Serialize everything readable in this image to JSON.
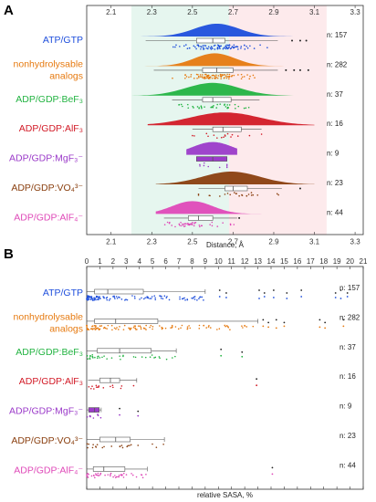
{
  "colors": {
    "background": "#ffffff",
    "band_green": "#e6f6ef",
    "band_pink": "#fdeaec",
    "box_stroke": "#555555",
    "panel_frame": "#333333"
  },
  "chart_data": [
    {
      "panel": "A",
      "type": "raincloud",
      "xlabel": "Distance, Å",
      "xlim": [
        1.98,
        3.34
      ],
      "ticks": [
        "2.1",
        "2.3",
        "2.5",
        "2.7",
        "2.9",
        "3.1",
        "3.3"
      ],
      "tick_values": [
        2.1,
        2.3,
        2.5,
        2.7,
        2.9,
        3.1,
        3.3
      ],
      "bands": [
        {
          "range": [
            2.2,
            2.68
          ],
          "color": "#e6f6ef"
        },
        {
          "range": [
            2.68,
            3.16
          ],
          "color": "#fdeaec"
        }
      ],
      "series": [
        {
          "name": "ATP/GTP",
          "label_lines": [
            "ATP/GTP"
          ],
          "count_label": "n: 157",
          "color": "#1f4fdc",
          "box": {
            "q1": 2.52,
            "median": 2.6,
            "q3": 2.66,
            "whisker_low": 2.27,
            "whisker_high": 2.92
          },
          "density_peak": 2.62,
          "density_range": [
            2.18,
            3.14
          ],
          "width": 0.11,
          "outliers": [
            2.99,
            3.03,
            3.06
          ]
        },
        {
          "name": "nonhydrolysable analogs",
          "label_lines": [
            "nonhydrolysable",
            "analogs"
          ],
          "count_label": "n: 282",
          "color": "#e67a10",
          "box": {
            "q1": 2.55,
            "median": 2.62,
            "q3": 2.7,
            "whisker_low": 2.31,
            "whisker_high": 2.92
          },
          "density_peak": 2.61,
          "density_range": [
            2.2,
            3.14
          ],
          "width": 0.1,
          "outliers": [
            2.96,
            3.0,
            3.03,
            3.07
          ]
        },
        {
          "name": "ADP/GDP:BeF3",
          "label_lines": [
            "ADP/GDP:BeF₃"
          ],
          "count_label": "n: 37",
          "color": "#22b341",
          "box": {
            "q1": 2.55,
            "median": 2.6,
            "q3": 2.69,
            "whisker_low": 2.4,
            "whisker_high": 2.83
          },
          "density_peak": 2.6,
          "density_range": [
            2.2,
            3.12
          ],
          "width": 0.13,
          "outliers": []
        },
        {
          "name": "ADP/GDP:AlF3",
          "label_lines": [
            "ADP/GDP:AlF₃"
          ],
          "count_label": "n: 16",
          "color": "#d21a26",
          "box": {
            "q1": 2.6,
            "median": 2.65,
            "q3": 2.74,
            "whisker_low": 2.5,
            "whisker_high": 2.84
          },
          "density_peak": 2.66,
          "density_range": [
            2.28,
            3.1
          ],
          "width": 0.17,
          "outliers": []
        },
        {
          "name": "ADP/GDP:MgF3-",
          "label_lines": [
            "ADP/GDP:MgF₃⁻"
          ],
          "count_label": "n: 9",
          "color": "#9b3bc9",
          "box": {
            "q1": 2.52,
            "median": 2.6,
            "q3": 2.67,
            "whisker_low": 2.52,
            "whisker_high": 2.67
          },
          "density_peak": 2.6,
          "density_range": [
            2.47,
            2.72
          ],
          "width": 0.1,
          "outliers": [],
          "box_filled": true
        },
        {
          "name": "ADP/GDP:VO4 3-",
          "label_lines": [
            "ADP/GDP:VO₄³⁻"
          ],
          "count_label": "n: 23",
          "color": "#8a3f0f",
          "box": {
            "q1": 2.66,
            "median": 2.7,
            "q3": 2.77,
            "whisker_low": 2.53,
            "whisker_high": 2.94
          },
          "density_peak": 2.69,
          "density_range": [
            2.32,
            3.1
          ],
          "width": 0.14,
          "outliers": [
            3.03
          ]
        },
        {
          "name": "ADP/GDP:AlF4-",
          "label_lines": [
            "ADP/GDP:AlF₄⁻"
          ],
          "count_label": "n: 44",
          "color": "#df49b8",
          "box": {
            "q1": 2.48,
            "median": 2.53,
            "q3": 2.6,
            "whisker_low": 2.36,
            "whisker_high": 2.72
          },
          "density_peak": 2.5,
          "density_range": [
            2.32,
            2.86
          ],
          "width": 0.1,
          "outliers": [
            2.73
          ]
        }
      ]
    },
    {
      "panel": "B",
      "type": "box-strip",
      "xlabel": "relative SASA, %",
      "xlim": [
        0,
        21
      ],
      "ticks": [
        "0",
        "1",
        "2",
        "3",
        "4",
        "5",
        "6",
        "7",
        "8",
        "9",
        "10",
        "11",
        "12",
        "13",
        "14",
        "15",
        "16",
        "17",
        "18",
        "19",
        "20",
        "21"
      ],
      "tick_values": [
        0,
        1,
        2,
        3,
        4,
        5,
        6,
        7,
        8,
        9,
        10,
        11,
        12,
        13,
        14,
        15,
        16,
        17,
        18,
        19,
        20,
        21
      ],
      "series": [
        {
          "name": "ATP/GTP",
          "label_lines": [
            "ATP/GTP"
          ],
          "count_label": "n: 157",
          "color": "#1f4fdc",
          "box": {
            "q1": 0.6,
            "median": 1.6,
            "q3": 4.3,
            "whisker_low": 0,
            "whisker_high": 9.0
          },
          "outliers": [
            10.1,
            10.6,
            13.1,
            13.5,
            14.2,
            15.2,
            16.3,
            18.9,
            19.3,
            19.8
          ]
        },
        {
          "name": "nonhydrolysable analogs",
          "label_lines": [
            "nonhydrolysable",
            "analogs"
          ],
          "count_label": "n: 282",
          "color": "#e67a10",
          "box": {
            "q1": 0.6,
            "median": 2.2,
            "q3": 5.4,
            "whisker_low": 0,
            "whisker_high": 13.0
          },
          "outliers": [
            13.4,
            13.8,
            14.4,
            15.0,
            17.7,
            18.1,
            19.5
          ]
        },
        {
          "name": "ADP/GDP:BeF3",
          "label_lines": [
            "ADP/GDP:BeF₃"
          ],
          "count_label": "n: 37",
          "color": "#22b341",
          "box": {
            "q1": 0.8,
            "median": 2.5,
            "q3": 4.9,
            "whisker_low": 0,
            "whisker_high": 6.8
          },
          "outliers": [
            10.2,
            11.8
          ]
        },
        {
          "name": "ADP/GDP:AlF3",
          "label_lines": [
            "ADP/GDP:AlF₃"
          ],
          "count_label": "n: 16",
          "color": "#d21a26",
          "box": {
            "q1": 1.0,
            "median": 1.8,
            "q3": 2.5,
            "whisker_low": 0.1,
            "whisker_high": 3.8
          },
          "outliers": [
            12.9
          ]
        },
        {
          "name": "ADP/GDP:MgF3-",
          "label_lines": [
            "ADP/GDP:MgF₃⁻"
          ],
          "count_label": "n: 9",
          "color": "#9b3bc9",
          "box": {
            "q1": 0.15,
            "median": 0.6,
            "q3": 0.95,
            "whisker_low": 0.0,
            "whisker_high": 1.1
          },
          "outliers": [
            2.5,
            3.9
          ],
          "box_filled": true
        },
        {
          "name": "ADP/GDP:VO4 3-",
          "label_lines": [
            "ADP/GDP:VO₄³⁻"
          ],
          "count_label": "n: 23",
          "color": "#8a3f0f",
          "box": {
            "q1": 1.0,
            "median": 2.2,
            "q3": 3.3,
            "whisker_low": 0,
            "whisker_high": 5.9
          },
          "outliers": []
        },
        {
          "name": "ADP/GDP:AlF4-",
          "label_lines": [
            "ADP/GDP:AlF₄⁻"
          ],
          "count_label": "n: 44",
          "color": "#df49b8",
          "box": {
            "q1": 0.5,
            "median": 1.3,
            "q3": 2.9,
            "whisker_low": 0,
            "whisker_high": 4.6
          },
          "outliers": [
            14.1
          ]
        }
      ]
    }
  ]
}
